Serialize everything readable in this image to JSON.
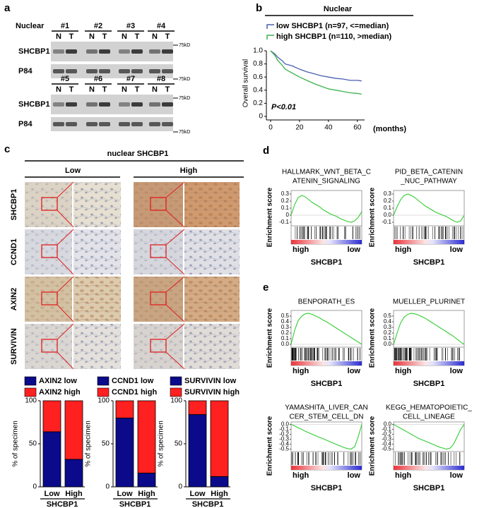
{
  "panel_labels": [
    "a",
    "b",
    "c",
    "d",
    "e"
  ],
  "blot": {
    "title": "Nuclear",
    "marker": "75kD",
    "groups": [
      {
        "samples": [
          {
            "name": "#1",
            "lanes": [
              "N",
              "T"
            ]
          },
          {
            "name": "#2",
            "lanes": [
              "N",
              "T"
            ]
          },
          {
            "name": "#3",
            "lanes": [
              "N",
              "T"
            ]
          },
          {
            "name": "#4",
            "lanes": [
              "N",
              "T"
            ]
          }
        ],
        "rows": [
          "SHCBP1",
          "P84"
        ]
      },
      {
        "samples": [
          {
            "name": "#5",
            "lanes": [
              "N",
              "T"
            ]
          },
          {
            "name": "#6",
            "lanes": [
              "N",
              "T"
            ]
          },
          {
            "name": "#7",
            "lanes": [
              "N",
              "T"
            ]
          },
          {
            "name": "#8",
            "lanes": [
              "N",
              "T"
            ]
          }
        ],
        "rows": [
          "SHCBP1",
          "P84"
        ]
      }
    ]
  },
  "ihc": {
    "title": "nuclear SHCBP1",
    "groups": [
      "Low",
      "High"
    ],
    "rows": [
      "SHCBP1",
      "CCND1",
      "AXIN2",
      "SURVIVIN"
    ]
  },
  "chart_data": [
    {
      "type": "line",
      "title": "Nuclear",
      "ylabel": "Overall survival",
      "xlabel": "(months)",
      "annotation": "P<0.01",
      "xlim": [
        0,
        65
      ],
      "xticks": [
        0,
        20,
        40,
        60
      ],
      "ylim": [
        0,
        1
      ],
      "yticks": [
        0,
        0.2,
        0.4,
        0.6,
        0.8,
        {
          "value": 1,
          "label": "1.0"
        }
      ],
      "x": [
        0,
        3,
        5,
        8,
        10,
        15,
        20,
        25,
        30,
        35,
        40,
        45,
        50,
        55,
        60,
        63
      ],
      "series": [
        {
          "name": "low SHCBP1 (n=97, <=median)",
          "color": "#4a5fb0",
          "values": [
            1,
            0.95,
            0.9,
            0.85,
            0.8,
            0.77,
            0.72,
            0.68,
            0.65,
            0.62,
            0.6,
            0.58,
            0.57,
            0.55,
            0.55,
            0.54
          ]
        },
        {
          "name": "high SHCBP1 (n=110, >median)",
          "color": "#3cb44b",
          "values": [
            1,
            0.93,
            0.85,
            0.78,
            0.72,
            0.66,
            0.6,
            0.55,
            0.5,
            0.46,
            0.42,
            0.4,
            0.38,
            0.36,
            0.35,
            0.34
          ]
        }
      ]
    },
    {
      "type": "bar",
      "stacked": true,
      "categories": [
        "Low",
        "High"
      ],
      "xlabel": "SHCBP1",
      "ylabel": "% of specimen",
      "ylim": [
        0,
        100
      ],
      "yticks": [
        0,
        50,
        100
      ],
      "series": [
        {
          "name": "AXIN2 low",
          "color": "#0a0a8a",
          "values": [
            64,
            32
          ]
        },
        {
          "name": "AXIN2 high",
          "color": "#ff2020",
          "values": [
            36,
            68
          ]
        }
      ]
    },
    {
      "type": "bar",
      "stacked": true,
      "categories": [
        "Low",
        "High"
      ],
      "xlabel": "SHCBP1",
      "ylabel": "% of specimen",
      "ylim": [
        0,
        100
      ],
      "yticks": [
        0,
        50,
        100
      ],
      "series": [
        {
          "name": "CCND1 low",
          "color": "#0a0a8a",
          "values": [
            80,
            16
          ]
        },
        {
          "name": "CCND1 high",
          "color": "#ff2020",
          "values": [
            20,
            84
          ]
        }
      ]
    },
    {
      "type": "bar",
      "stacked": true,
      "categories": [
        "Low",
        "High"
      ],
      "xlabel": "SHCBP1",
      "ylabel": "% of specimen",
      "ylim": [
        0,
        100
      ],
      "yticks": [
        0,
        50,
        100
      ],
      "series": [
        {
          "name": "SURVIVIN low",
          "color": "#0a0a8a",
          "values": [
            84,
            12
          ]
        },
        {
          "name": "SURVIVIN high",
          "color": "#ff2020",
          "values": [
            16,
            88
          ]
        }
      ]
    },
    {
      "type": "gsea",
      "title": [
        "HALLMARK_WNT_BETA_C",
        "ATENIN_SIGNALING"
      ],
      "ylabel": "Enrichment score",
      "xlabel": "SHCBP1",
      "range_labels": [
        "high",
        "low"
      ],
      "color": "#33cc33",
      "ylim": [
        -0.15,
        0.35
      ],
      "yticks": [
        -0.1,
        0,
        0.1,
        0.2,
        0.3
      ],
      "xlim": [
        0,
        100
      ],
      "x": [
        0,
        5,
        10,
        15,
        20,
        25,
        30,
        35,
        40,
        45,
        50,
        55,
        60,
        65,
        70,
        75,
        80,
        85,
        90,
        95,
        100
      ],
      "values": [
        0,
        0.15,
        0.25,
        0.28,
        0.26,
        0.22,
        0.18,
        0.15,
        0.12,
        0.08,
        0.05,
        0.02,
        0,
        -0.02,
        -0.05,
        -0.07,
        -0.09,
        -0.1,
        -0.08,
        -0.03,
        0.05
      ]
    },
    {
      "type": "gsea",
      "title": [
        "PID_BETA_CATENIN",
        "_NUC_PATHWAY"
      ],
      "ylabel": "Enrichment score",
      "xlabel": "SHCBP1",
      "range_labels": [
        "high",
        "low"
      ],
      "color": "#33cc33",
      "ylim": [
        -0.15,
        0.35
      ],
      "yticks": [
        -0.1,
        {
          "value": 0,
          "label": "0.0"
        },
        0.1,
        0.2,
        0.3
      ],
      "xlim": [
        0,
        100
      ],
      "x": [
        0,
        5,
        10,
        15,
        20,
        25,
        30,
        35,
        40,
        45,
        50,
        55,
        60,
        65,
        70,
        75,
        80,
        85,
        90,
        95,
        100
      ],
      "values": [
        0,
        0.12,
        0.22,
        0.28,
        0.3,
        0.28,
        0.25,
        0.21,
        0.17,
        0.13,
        0.1,
        0.07,
        0.04,
        0.02,
        0,
        -0.02,
        -0.05,
        -0.08,
        -0.1,
        -0.08,
        0
      ]
    },
    {
      "type": "gsea",
      "title": [
        "BENPORATH_ES"
      ],
      "ylabel": "Enrichment score",
      "xlabel": "SHCBP1",
      "range_labels": [
        "high",
        "low"
      ],
      "color": "#33cc33",
      "ylim": [
        -0.05,
        0.6
      ],
      "yticks": [
        {
          "value": 0,
          "label": "0.0"
        },
        0.1,
        0.2,
        0.3,
        0.4,
        0.5
      ],
      "xlim": [
        0,
        100
      ],
      "x": [
        0,
        5,
        10,
        15,
        20,
        25,
        30,
        35,
        40,
        45,
        50,
        55,
        60,
        65,
        70,
        75,
        80,
        85,
        90,
        95,
        100
      ],
      "values": [
        0,
        0.25,
        0.42,
        0.5,
        0.54,
        0.55,
        0.53,
        0.5,
        0.47,
        0.43,
        0.4,
        0.36,
        0.32,
        0.28,
        0.24,
        0.2,
        0.16,
        0.12,
        0.08,
        0.04,
        0
      ]
    },
    {
      "type": "gsea",
      "title": [
        "MUELLER_PLURINET"
      ],
      "ylabel": "Enrichment score",
      "xlabel": "SHCBP1",
      "range_labels": [
        "high",
        "low"
      ],
      "color": "#33cc33",
      "ylim": [
        -0.05,
        0.6
      ],
      "yticks": [
        {
          "value": 0,
          "label": "0.0"
        },
        0.1,
        0.2,
        0.3,
        0.4,
        0.5
      ],
      "xlim": [
        0,
        100
      ],
      "x": [
        0,
        5,
        10,
        15,
        20,
        25,
        30,
        35,
        40,
        45,
        50,
        55,
        60,
        65,
        70,
        75,
        80,
        85,
        90,
        95,
        100
      ],
      "values": [
        0,
        0.2,
        0.38,
        0.48,
        0.53,
        0.55,
        0.54,
        0.52,
        0.49,
        0.46,
        0.42,
        0.38,
        0.34,
        0.3,
        0.26,
        0.22,
        0.18,
        0.14,
        0.09,
        0.04,
        0
      ]
    },
    {
      "type": "gsea",
      "title": [
        "YAMASHITA_LIVER_CAN",
        "CER_STEM_CELL_DN"
      ],
      "ylabel": "Enrichment score",
      "xlabel": "SHCBP1",
      "range_labels": [
        "high",
        "low"
      ],
      "color": "#33cc33",
      "ylim": [
        -0.55,
        0.05
      ],
      "yticks": [
        -0.5,
        -0.4,
        -0.3,
        -0.2,
        -0.1,
        {
          "value": 0,
          "label": "0.0"
        }
      ],
      "xlim": [
        0,
        100
      ],
      "x": [
        0,
        5,
        10,
        15,
        20,
        25,
        30,
        35,
        40,
        45,
        50,
        55,
        60,
        65,
        70,
        75,
        80,
        85,
        90,
        95,
        100
      ],
      "values": [
        0,
        -0.03,
        -0.07,
        -0.1,
        -0.14,
        -0.17,
        -0.2,
        -0.23,
        -0.26,
        -0.29,
        -0.32,
        -0.35,
        -0.38,
        -0.41,
        -0.44,
        -0.47,
        -0.49,
        -0.5,
        -0.45,
        -0.25,
        0
      ]
    },
    {
      "type": "gsea",
      "title": [
        "KEGG_HEMATOPOIETIC_",
        "CELL_LINEAGE"
      ],
      "ylabel": "Enrichment score",
      "xlabel": "SHCBP1",
      "range_labels": [
        "high",
        "low"
      ],
      "color": "#33cc33",
      "ylim": [
        -0.55,
        0.05
      ],
      "yticks": [
        -0.5,
        -0.4,
        -0.3,
        -0.2,
        -0.1,
        {
          "value": 0,
          "label": "0.0"
        }
      ],
      "xlim": [
        0,
        100
      ],
      "x": [
        0,
        5,
        10,
        15,
        20,
        25,
        30,
        35,
        40,
        45,
        50,
        55,
        60,
        65,
        70,
        75,
        80,
        85,
        90,
        95,
        100
      ],
      "values": [
        0,
        -0.04,
        -0.08,
        -0.12,
        -0.16,
        -0.2,
        -0.24,
        -0.28,
        -0.31,
        -0.34,
        -0.37,
        -0.4,
        -0.43,
        -0.46,
        -0.48,
        -0.5,
        -0.48,
        -0.4,
        -0.25,
        -0.1,
        0
      ]
    }
  ]
}
